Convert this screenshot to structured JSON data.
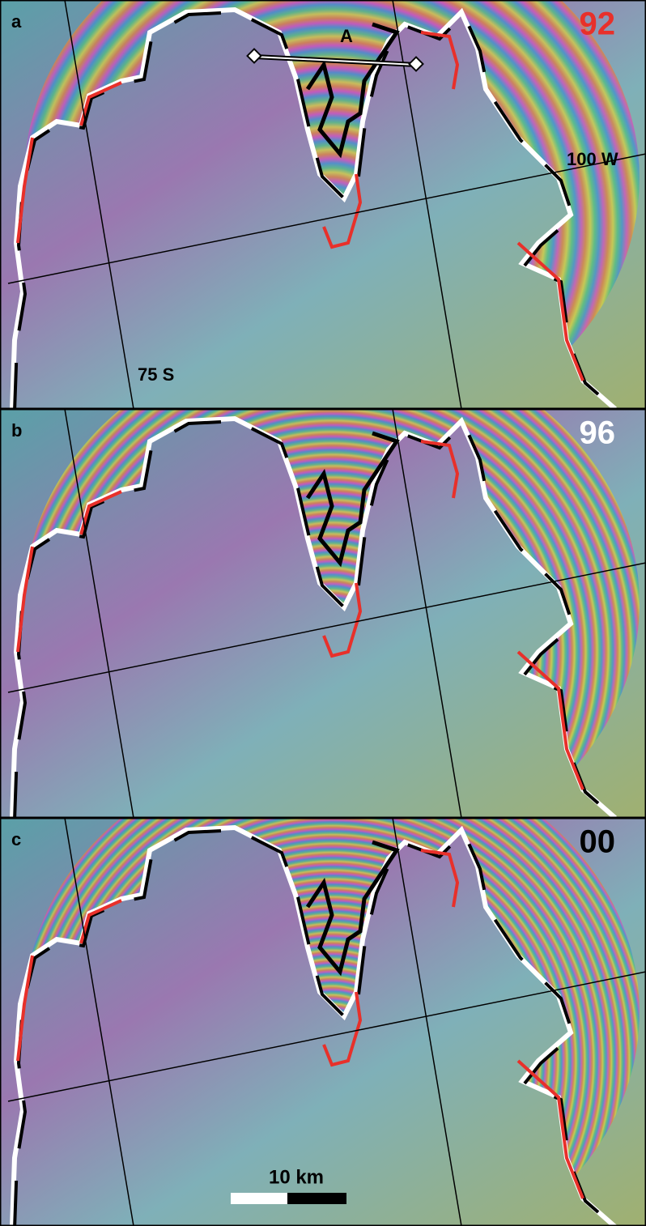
{
  "panels": [
    {
      "label": "a",
      "year": "92",
      "point": "A",
      "longitude": "100 W",
      "latitude": "75 S"
    },
    {
      "label": "b",
      "year": "96"
    },
    {
      "label": "c",
      "year": "00",
      "scale_bar": "10 km"
    }
  ]
}
